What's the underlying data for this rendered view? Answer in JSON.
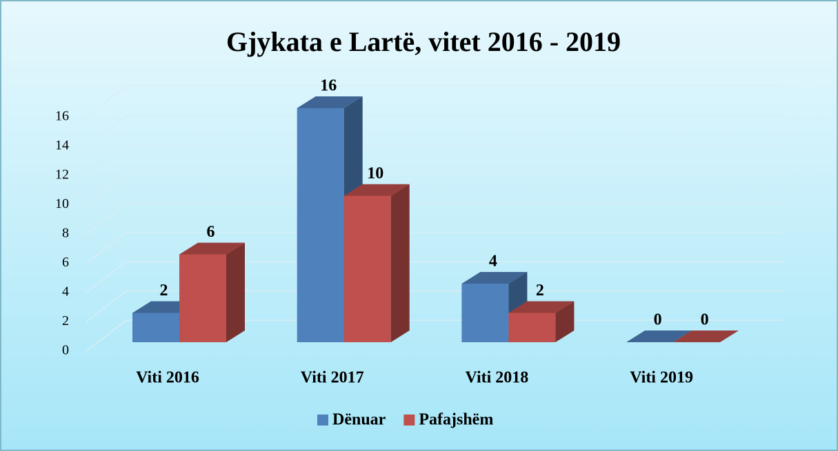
{
  "chart_data": {
    "type": "bar3d",
    "title": "Gjykata e Lartë, vitet 2016 - 2019",
    "categories": [
      "Viti  2016",
      "Viti  2017",
      "Viti  2018",
      "Viti  2019"
    ],
    "series": [
      {
        "name": "Dënuar",
        "color": "#4f81bd",
        "values": [
          2,
          16,
          4,
          0
        ]
      },
      {
        "name": "Pafajshëm",
        "color": "#c0504d",
        "values": [
          6,
          10,
          2,
          0
        ]
      }
    ],
    "ylim": [
      0,
      16
    ],
    "yticks": [
      0,
      2,
      4,
      6,
      8,
      10,
      12,
      14,
      16
    ],
    "grid": true,
    "legend": "bottom"
  }
}
